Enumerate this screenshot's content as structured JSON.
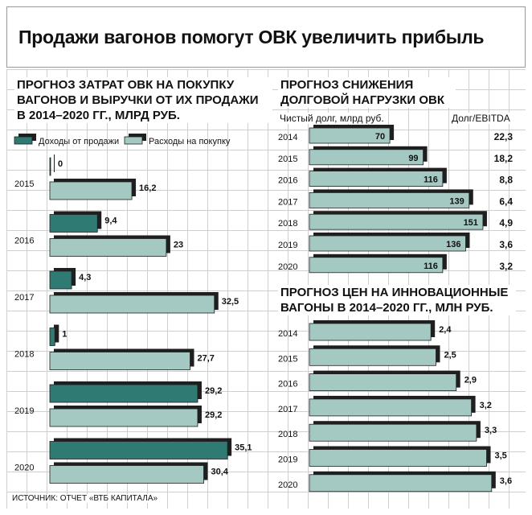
{
  "title": "Продажи вагонов помогут ОВК увеличить прибыль",
  "source": "ИСТОЧНИК: ОТЧЕТ «ВТБ КАПИТАЛА»",
  "colors": {
    "dark": "#2f7a72",
    "light": "#a4c9c3",
    "edge": "#1f1f1f"
  },
  "chart_data": [
    {
      "type": "bar",
      "orientation": "horizontal",
      "title": "ПРОГНОЗ ЗАТРАТ ОВК НА ПОКУПКУ ВАГОНОВ И ВЫРУЧКИ ОТ ИХ ПРОДАЖИ В 2014–2020 ГГ., МЛРД РУБ.",
      "legend": [
        "Доходы от продажи",
        "Расходы на покупку"
      ],
      "categories": [
        "2015",
        "2016",
        "2017",
        "2018",
        "2019",
        "2020"
      ],
      "series": [
        {
          "name": "Доходы от продажи",
          "values": [
            0,
            9.4,
            4.3,
            1,
            29.2,
            35.1
          ],
          "labels": [
            "0",
            "9,4",
            "4,3",
            "1",
            "29,2",
            "35,1"
          ]
        },
        {
          "name": "Расходы на покупку",
          "values": [
            16.2,
            23,
            32.5,
            27.7,
            29.2,
            30.4
          ],
          "labels": [
            "16,2",
            "23",
            "32,5",
            "27,7",
            "29,2",
            "30,4"
          ]
        }
      ]
    },
    {
      "type": "bar",
      "orientation": "horizontal",
      "title": "ПРОГНОЗ СНИЖЕНИЯ ДОЛГОВОЙ НАГРУЗКИ ОВК",
      "subtitle": "Чистый долг, млрд руб.",
      "right_header": "Долг/EBITDA",
      "categories": [
        "2014",
        "2015",
        "2016",
        "2017",
        "2018",
        "2019",
        "2020"
      ],
      "values": [
        70,
        99,
        116,
        139,
        151,
        136,
        116
      ],
      "labels": [
        "70",
        "99",
        "116",
        "139",
        "151",
        "136",
        "116"
      ],
      "ratio_labels": [
        "22,3",
        "18,2",
        "8,8",
        "6,4",
        "4,9",
        "3,6",
        "3,2"
      ]
    },
    {
      "type": "bar",
      "orientation": "horizontal",
      "title": "ПРОГНОЗ ЦЕН НА ИННОВАЦИОННЫЕ ВАГОНЫ В 2014–2020 ГГ., МЛН РУБ.",
      "categories": [
        "2014",
        "2015",
        "2016",
        "2017",
        "2018",
        "2019",
        "2020"
      ],
      "values": [
        2.4,
        2.5,
        2.9,
        3.2,
        3.3,
        3.5,
        3.6
      ],
      "labels": [
        "2,4",
        "2,5",
        "2,9",
        "3,2",
        "3,3",
        "3,5",
        "3,6"
      ]
    }
  ]
}
